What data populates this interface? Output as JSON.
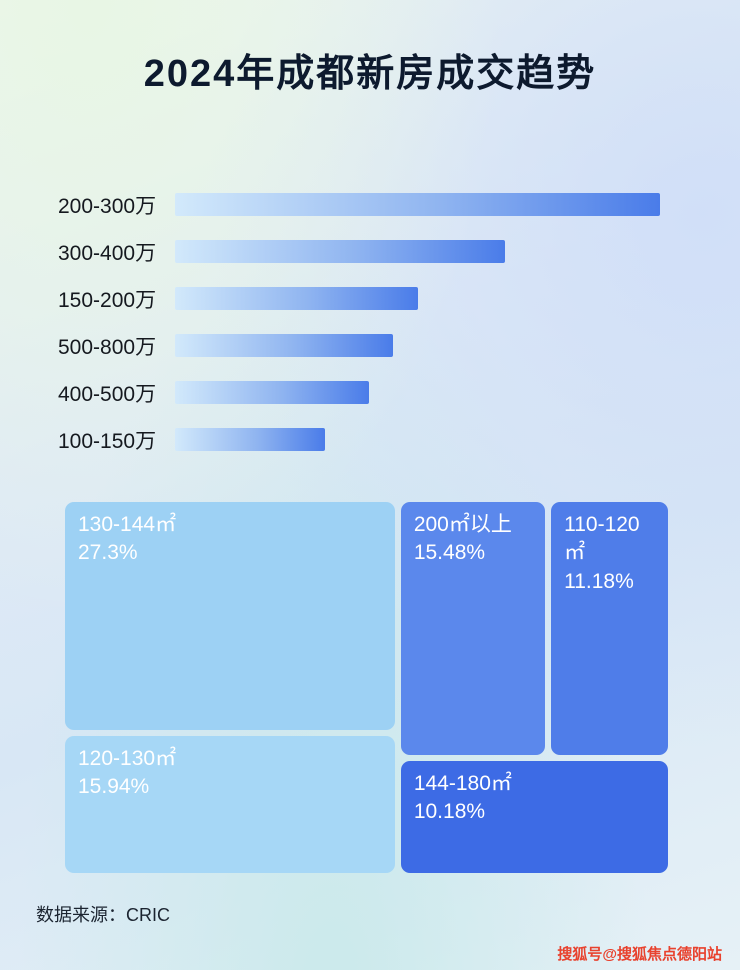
{
  "page": {
    "title": "2024年成都新房成交趋势",
    "footer": "数据来源：CRIC",
    "watermark": "搜狐号@搜狐焦点德阳站"
  },
  "colors": {
    "bar_gradient_start": "#d2e9fb",
    "bar_gradient_end": "#4a7ce9",
    "title_text": "#0d1a2e",
    "watermark_red": "#e8422e"
  },
  "chart_data": [
    {
      "type": "bar",
      "orientation": "horizontal",
      "title": "2024年成都新房成交趋势",
      "categories": [
        "200-300万",
        "300-400万",
        "150-200万",
        "500-800万",
        "400-500万",
        "100-150万"
      ],
      "values": [
        100,
        68,
        50,
        45,
        40,
        31
      ],
      "value_note": "no numeric axis or data labels shown; values estimated as % of longest bar",
      "grid": false,
      "legend": false
    },
    {
      "type": "treemap",
      "items": [
        {
          "label": "130-144㎡",
          "pct_label": "27.3%",
          "value": 27.3,
          "color": "#9dd1f4"
        },
        {
          "label": "120-130㎡",
          "pct_label": "15.94%",
          "value": 15.94,
          "color": "#a6d7f6"
        },
        {
          "label": "200㎡以上",
          "pct_label": "15.48%",
          "value": 15.48,
          "color": "#5b88ec"
        },
        {
          "label": "110-120㎡",
          "pct_label": "11.18%",
          "value": 11.18,
          "color": "#4f7de9"
        },
        {
          "label": "144-180㎡",
          "pct_label": "10.18%",
          "value": 10.18,
          "color": "#3d6be5"
        }
      ]
    }
  ]
}
